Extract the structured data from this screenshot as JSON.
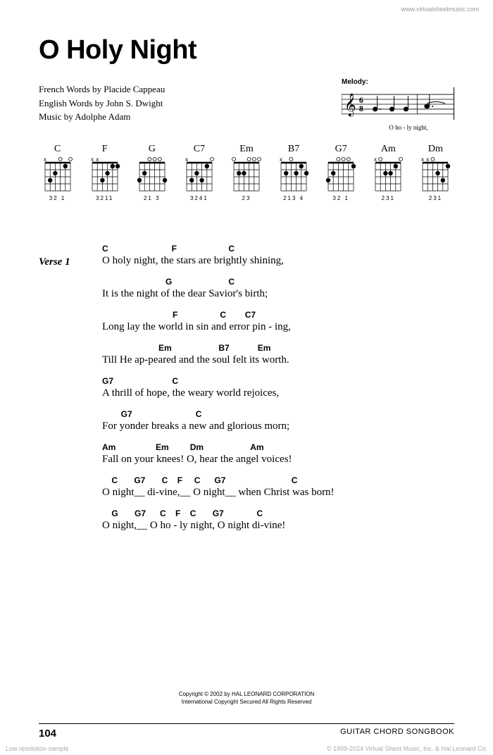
{
  "watermark": "www.virtualsheetmusic.com",
  "title": "O Holy Night",
  "credits": {
    "line1": "French Words by Placide Cappeau",
    "line2": "English Words by John S. Dwight",
    "line3": "Music by Adolphe Adam"
  },
  "melody": {
    "label": "Melody:",
    "lyrics": "O    ho  -  ly   night,"
  },
  "chords": [
    {
      "name": "C",
      "fingers": "32  1",
      "markers": [
        {
          "x": 1,
          "y": 0,
          "t": "x"
        },
        {
          "x": 4,
          "y": 0,
          "t": "o"
        },
        {
          "x": 6,
          "y": 0,
          "t": "o"
        },
        {
          "x": 2,
          "y": 3,
          "t": "dot"
        },
        {
          "x": 3,
          "y": 2,
          "t": "dot"
        },
        {
          "x": 5,
          "y": 1,
          "t": "dot"
        }
      ]
    },
    {
      "name": "F",
      "fingers": "3211",
      "markers": [
        {
          "x": 1,
          "y": 0,
          "t": "x"
        },
        {
          "x": 2,
          "y": 0,
          "t": "x"
        },
        {
          "x": 3,
          "y": 3,
          "t": "dot"
        },
        {
          "x": 4,
          "y": 2,
          "t": "dot"
        },
        {
          "x": 5,
          "y": 1,
          "t": "dot"
        },
        {
          "x": 6,
          "y": 1,
          "t": "dot"
        }
      ]
    },
    {
      "name": "G",
      "fingers": "21   3",
      "markers": [
        {
          "x": 3,
          "y": 0,
          "t": "o"
        },
        {
          "x": 4,
          "y": 0,
          "t": "o"
        },
        {
          "x": 5,
          "y": 0,
          "t": "o"
        },
        {
          "x": 1,
          "y": 3,
          "t": "dot"
        },
        {
          "x": 2,
          "y": 2,
          "t": "dot"
        },
        {
          "x": 6,
          "y": 3,
          "t": "dot"
        }
      ]
    },
    {
      "name": "C7",
      "fingers": "3241",
      "markers": [
        {
          "x": 1,
          "y": 0,
          "t": "x"
        },
        {
          "x": 6,
          "y": 0,
          "t": "o"
        },
        {
          "x": 2,
          "y": 3,
          "t": "dot"
        },
        {
          "x": 3,
          "y": 2,
          "t": "dot"
        },
        {
          "x": 4,
          "y": 3,
          "t": "dot"
        },
        {
          "x": 5,
          "y": 1,
          "t": "dot"
        }
      ]
    },
    {
      "name": "Em",
      "fingers": " 23",
      "markers": [
        {
          "x": 1,
          "y": 0,
          "t": "o"
        },
        {
          "x": 4,
          "y": 0,
          "t": "o"
        },
        {
          "x": 5,
          "y": 0,
          "t": "o"
        },
        {
          "x": 6,
          "y": 0,
          "t": "o"
        },
        {
          "x": 2,
          "y": 2,
          "t": "dot"
        },
        {
          "x": 3,
          "y": 2,
          "t": "dot"
        }
      ]
    },
    {
      "name": "B7",
      "fingers": "213 4",
      "markers": [
        {
          "x": 1,
          "y": 0,
          "t": "x"
        },
        {
          "x": 3,
          "y": 0,
          "t": "o"
        },
        {
          "x": 2,
          "y": 2,
          "t": "dot"
        },
        {
          "x": 4,
          "y": 2,
          "t": "dot"
        },
        {
          "x": 5,
          "y": 1,
          "t": "dot"
        },
        {
          "x": 6,
          "y": 2,
          "t": "dot"
        }
      ]
    },
    {
      "name": "G7",
      "fingers": "32   1",
      "markers": [
        {
          "x": 3,
          "y": 0,
          "t": "o"
        },
        {
          "x": 4,
          "y": 0,
          "t": "o"
        },
        {
          "x": 5,
          "y": 0,
          "t": "o"
        },
        {
          "x": 1,
          "y": 3,
          "t": "dot"
        },
        {
          "x": 2,
          "y": 2,
          "t": "dot"
        },
        {
          "x": 6,
          "y": 1,
          "t": "dot"
        }
      ]
    },
    {
      "name": "Am",
      "fingers": " 231",
      "markers": [
        {
          "x": 1,
          "y": 0,
          "t": "x"
        },
        {
          "x": 2,
          "y": 0,
          "t": "o"
        },
        {
          "x": 6,
          "y": 0,
          "t": "o"
        },
        {
          "x": 3,
          "y": 2,
          "t": "dot"
        },
        {
          "x": 4,
          "y": 2,
          "t": "dot"
        },
        {
          "x": 5,
          "y": 1,
          "t": "dot"
        }
      ]
    },
    {
      "name": "Dm",
      "fingers": " 231",
      "markers": [
        {
          "x": 1,
          "y": 0,
          "t": "x"
        },
        {
          "x": 2,
          "y": 0,
          "t": "x"
        },
        {
          "x": 3,
          "y": 0,
          "t": "o"
        },
        {
          "x": 4,
          "y": 2,
          "t": "dot"
        },
        {
          "x": 5,
          "y": 3,
          "t": "dot"
        },
        {
          "x": 6,
          "y": 1,
          "t": "dot"
        }
      ]
    }
  ],
  "verse_label": "Verse 1",
  "lines": [
    {
      "chords": "C                           F                      C",
      "text": "O holy night, the stars are brightly shining,"
    },
    {
      "chords": "                           G                        C",
      "text": "It is the night of the dear Savior's birth;"
    },
    {
      "chords": "                              F                  C        C7",
      "text": "Long lay the world in sin and error pin  -  ing,"
    },
    {
      "chords": "                        Em                    B7            Em",
      "text": "Till He ap-peared and the soul felt its worth."
    },
    {
      "chords": "G7                         C",
      "text": "A thrill of hope, the weary world rejoices,"
    },
    {
      "chords": "        G7                           C",
      "text": "For yonder breaks a new and glorious morn;"
    },
    {
      "chords": "Am                 Em         Dm                    Am",
      "text": "Fall on your knees! O, hear the angel voices!"
    },
    {
      "chords": "    C       G7       C    F     C      G7                            C",
      "text": "O night__ di-vine,__ O night__ when Christ was born!"
    },
    {
      "chords": "    G       G7      C    F    C       G7              C",
      "text": "O night,__ O ho  -  ly night, O night di-vine!"
    }
  ],
  "copyright": {
    "line1": "Copyright © 2002 by HAL LEONARD CORPORATION",
    "line2": "International Copyright Secured    All Rights Reserved"
  },
  "footer": {
    "page": "104",
    "label": "GUITAR CHORD SONGBOOK"
  },
  "sample_note": "Low resolution sample",
  "copy_note": "© 1999-2024 Virtual Sheet Music, Inc. & Hal Leonard Co."
}
